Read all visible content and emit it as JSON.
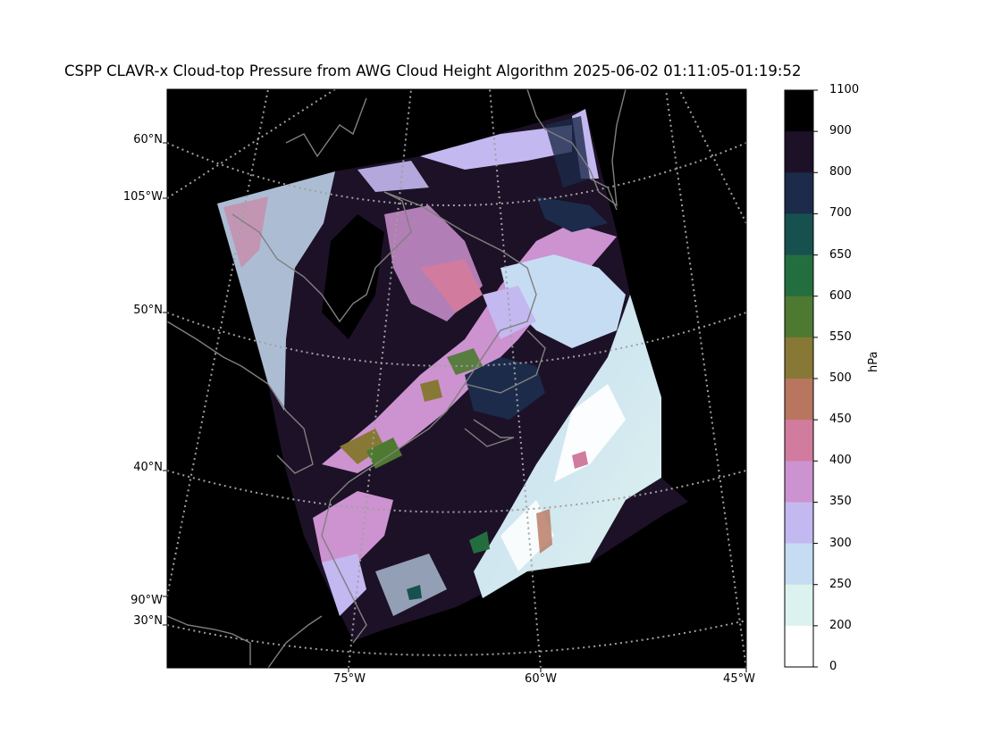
{
  "title": "CSPP CLAVR-x Cloud-top Pressure from AWG Cloud Height Algorithm 2025-06-02 01:11:05-01:19:52",
  "lat_labels": [
    "60°N",
    "50°N",
    "40°N",
    "30°N"
  ],
  "lon_labels_left": [
    "105°W",
    "90°W"
  ],
  "lon_labels_bottom": [
    "75°W",
    "60°W",
    "45°W"
  ],
  "colorbar": {
    "unit": "hPa",
    "ticks": [
      "1100",
      "900",
      "800",
      "700",
      "650",
      "600",
      "550",
      "500",
      "450",
      "400",
      "350",
      "300",
      "250",
      "200",
      "0"
    ],
    "colors": [
      "#000000",
      "#1d1127",
      "#1c2b4a",
      "#17514f",
      "#236e3f",
      "#4d7a30",
      "#877935",
      "#b8765f",
      "#d17b9e",
      "#cd92d0",
      "#c4b8f0",
      "#c6dcf2",
      "#dcf2ee",
      "#ffffff"
    ]
  },
  "colors": {
    "background": "#000000",
    "coastline": "#808080",
    "graticule": "#a0a0a0"
  }
}
